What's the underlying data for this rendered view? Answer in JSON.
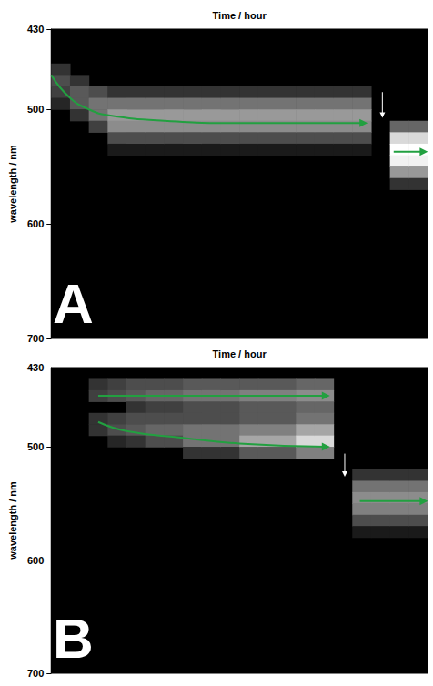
{
  "chart_data": [
    {
      "type": "heatmap",
      "panel": "A",
      "title": "Time / hour",
      "ylabel": "wavelength / nm",
      "xlim": [
        0,
        20
      ],
      "ylim": [
        430,
        700
      ],
      "yticks": [
        430,
        500,
        600,
        700
      ],
      "tick_labels": "y",
      "grid": false,
      "cell_size": [
        1,
        10
      ],
      "zlim": [
        0,
        1
      ],
      "cells": [
        [
          0,
          460,
          0.2
        ],
        [
          0,
          470,
          0.3
        ],
        [
          0,
          480,
          0.25
        ],
        [
          0,
          490,
          0.15
        ],
        [
          1,
          470,
          0.2
        ],
        [
          1,
          480,
          0.35
        ],
        [
          1,
          490,
          0.35
        ],
        [
          1,
          500,
          0.2
        ],
        [
          2,
          480,
          0.3
        ],
        [
          2,
          490,
          0.45
        ],
        [
          2,
          500,
          0.45
        ],
        [
          2,
          510,
          0.25
        ],
        [
          3,
          480,
          0.2
        ],
        [
          3,
          490,
          0.45
        ],
        [
          3,
          500,
          0.6
        ],
        [
          3,
          510,
          0.55
        ],
        [
          3,
          520,
          0.3
        ],
        [
          3,
          530,
          0.1
        ],
        [
          4,
          480,
          0.2
        ],
        [
          4,
          490,
          0.45
        ],
        [
          4,
          500,
          0.6
        ],
        [
          4,
          510,
          0.55
        ],
        [
          4,
          520,
          0.3
        ],
        [
          4,
          530,
          0.1
        ],
        [
          5,
          480,
          0.2
        ],
        [
          5,
          490,
          0.45
        ],
        [
          5,
          500,
          0.6
        ],
        [
          5,
          510,
          0.55
        ],
        [
          5,
          520,
          0.3
        ],
        [
          5,
          530,
          0.1
        ],
        [
          6,
          480,
          0.2
        ],
        [
          6,
          490,
          0.45
        ],
        [
          6,
          500,
          0.6
        ],
        [
          6,
          510,
          0.55
        ],
        [
          6,
          520,
          0.3
        ],
        [
          6,
          530,
          0.1
        ],
        [
          7,
          480,
          0.2
        ],
        [
          7,
          490,
          0.45
        ],
        [
          7,
          500,
          0.6
        ],
        [
          7,
          510,
          0.55
        ],
        [
          7,
          520,
          0.3
        ],
        [
          7,
          530,
          0.1
        ],
        [
          8,
          480,
          0.2
        ],
        [
          8,
          490,
          0.45
        ],
        [
          8,
          500,
          0.6
        ],
        [
          8,
          510,
          0.55
        ],
        [
          8,
          520,
          0.3
        ],
        [
          8,
          530,
          0.1
        ],
        [
          9,
          480,
          0.2
        ],
        [
          9,
          490,
          0.45
        ],
        [
          9,
          500,
          0.6
        ],
        [
          9,
          510,
          0.55
        ],
        [
          9,
          520,
          0.3
        ],
        [
          9,
          530,
          0.1
        ],
        [
          10,
          480,
          0.2
        ],
        [
          10,
          490,
          0.45
        ],
        [
          10,
          500,
          0.6
        ],
        [
          10,
          510,
          0.55
        ],
        [
          10,
          520,
          0.3
        ],
        [
          10,
          530,
          0.1
        ],
        [
          11,
          480,
          0.2
        ],
        [
          11,
          490,
          0.45
        ],
        [
          11,
          500,
          0.6
        ],
        [
          11,
          510,
          0.55
        ],
        [
          11,
          520,
          0.3
        ],
        [
          11,
          530,
          0.1
        ],
        [
          12,
          480,
          0.2
        ],
        [
          12,
          490,
          0.45
        ],
        [
          12,
          500,
          0.6
        ],
        [
          12,
          510,
          0.55
        ],
        [
          12,
          520,
          0.3
        ],
        [
          12,
          530,
          0.1
        ],
        [
          13,
          480,
          0.2
        ],
        [
          13,
          490,
          0.45
        ],
        [
          13,
          500,
          0.6
        ],
        [
          13,
          510,
          0.55
        ],
        [
          13,
          520,
          0.3
        ],
        [
          13,
          530,
          0.1
        ],
        [
          14,
          480,
          0.2
        ],
        [
          14,
          490,
          0.45
        ],
        [
          14,
          500,
          0.6
        ],
        [
          14,
          510,
          0.55
        ],
        [
          14,
          520,
          0.3
        ],
        [
          14,
          530,
          0.1
        ],
        [
          15,
          480,
          0.2
        ],
        [
          15,
          490,
          0.45
        ],
        [
          15,
          500,
          0.6
        ],
        [
          15,
          510,
          0.55
        ],
        [
          15,
          520,
          0.3
        ],
        [
          15,
          530,
          0.1
        ],
        [
          16,
          480,
          0.2
        ],
        [
          16,
          490,
          0.45
        ],
        [
          16,
          500,
          0.6
        ],
        [
          16,
          510,
          0.55
        ],
        [
          16,
          520,
          0.3
        ],
        [
          16,
          530,
          0.1
        ],
        [
          18,
          510,
          0.4
        ],
        [
          18,
          520,
          0.85
        ],
        [
          18,
          530,
          1
        ],
        [
          18,
          540,
          0.95
        ],
        [
          18,
          550,
          0.6
        ],
        [
          18,
          560,
          0.2
        ],
        [
          19,
          510,
          0.4
        ],
        [
          19,
          520,
          0.85
        ],
        [
          19,
          530,
          1
        ],
        [
          19,
          540,
          0.95
        ],
        [
          19,
          550,
          0.6
        ],
        [
          19,
          560,
          0.2
        ]
      ],
      "series": [
        {
          "color": "#22a040",
          "x": [
            0,
            1,
            2,
            3,
            6,
            10,
            16.6
          ],
          "values": [
            470,
            490,
            500,
            505,
            510,
            512,
            512
          ]
        },
        {
          "color": "#22a040",
          "x": [
            18.2,
            19.8
          ],
          "values": [
            537,
            537
          ]
        }
      ],
      "event_arrow": {
        "color": "#ffffff",
        "x": 17.6,
        "from": 485,
        "to": 505
      }
    },
    {
      "type": "heatmap",
      "panel": "B",
      "title": "Time / hour",
      "ylabel": "wavelength / nm",
      "xlim": [
        0,
        20
      ],
      "ylim": [
        430,
        700
      ],
      "yticks": [
        430,
        500,
        600,
        700
      ],
      "tick_labels": "y",
      "grid": false,
      "cell_size": [
        1,
        10
      ],
      "zlim": [
        0,
        1
      ],
      "cells": [
        [
          2,
          440,
          0.2
        ],
        [
          2,
          450,
          0.25
        ],
        [
          2,
          470,
          0.2
        ],
        [
          2,
          480,
          0.2
        ],
        [
          3,
          440,
          0.25
        ],
        [
          3,
          450,
          0.3
        ],
        [
          3,
          470,
          0.25
        ],
        [
          3,
          480,
          0.3
        ],
        [
          3,
          490,
          0.15
        ],
        [
          4,
          440,
          0.3
        ],
        [
          4,
          450,
          0.35
        ],
        [
          4,
          460,
          0.2
        ],
        [
          4,
          470,
          0.3
        ],
        [
          4,
          480,
          0.35
        ],
        [
          4,
          490,
          0.2
        ],
        [
          5,
          440,
          0.3
        ],
        [
          5,
          450,
          0.4
        ],
        [
          5,
          460,
          0.25
        ],
        [
          5,
          470,
          0.3
        ],
        [
          5,
          480,
          0.4
        ],
        [
          5,
          490,
          0.3
        ],
        [
          6,
          440,
          0.3
        ],
        [
          6,
          450,
          0.4
        ],
        [
          6,
          460,
          0.25
        ],
        [
          6,
          470,
          0.3
        ],
        [
          6,
          480,
          0.4
        ],
        [
          6,
          490,
          0.3
        ],
        [
          7,
          440,
          0.35
        ],
        [
          7,
          450,
          0.45
        ],
        [
          7,
          460,
          0.3
        ],
        [
          7,
          470,
          0.3
        ],
        [
          7,
          480,
          0.45
        ],
        [
          7,
          490,
          0.45
        ],
        [
          7,
          500,
          0.2
        ],
        [
          8,
          440,
          0.35
        ],
        [
          8,
          450,
          0.45
        ],
        [
          8,
          460,
          0.3
        ],
        [
          8,
          470,
          0.3
        ],
        [
          8,
          480,
          0.45
        ],
        [
          8,
          490,
          0.45
        ],
        [
          8,
          500,
          0.2
        ],
        [
          9,
          440,
          0.35
        ],
        [
          9,
          450,
          0.45
        ],
        [
          9,
          460,
          0.3
        ],
        [
          9,
          470,
          0.3
        ],
        [
          9,
          480,
          0.45
        ],
        [
          9,
          490,
          0.45
        ],
        [
          9,
          500,
          0.2
        ],
        [
          10,
          440,
          0.35
        ],
        [
          10,
          450,
          0.5
        ],
        [
          10,
          460,
          0.35
        ],
        [
          10,
          470,
          0.35
        ],
        [
          10,
          480,
          0.5
        ],
        [
          10,
          490,
          0.65
        ],
        [
          10,
          500,
          0.35
        ],
        [
          11,
          440,
          0.35
        ],
        [
          11,
          450,
          0.5
        ],
        [
          11,
          460,
          0.35
        ],
        [
          11,
          470,
          0.35
        ],
        [
          11,
          480,
          0.5
        ],
        [
          11,
          490,
          0.65
        ],
        [
          11,
          500,
          0.35
        ],
        [
          12,
          440,
          0.35
        ],
        [
          12,
          450,
          0.5
        ],
        [
          12,
          460,
          0.35
        ],
        [
          12,
          470,
          0.35
        ],
        [
          12,
          480,
          0.5
        ],
        [
          12,
          490,
          0.65
        ],
        [
          12,
          500,
          0.35
        ],
        [
          13,
          440,
          0.4
        ],
        [
          13,
          450,
          0.55
        ],
        [
          13,
          460,
          0.4
        ],
        [
          13,
          470,
          0.45
        ],
        [
          13,
          480,
          0.65
        ],
        [
          13,
          490,
          0.85
        ],
        [
          13,
          500,
          0.5
        ],
        [
          14,
          440,
          0.4
        ],
        [
          14,
          450,
          0.55
        ],
        [
          14,
          460,
          0.4
        ],
        [
          14,
          470,
          0.45
        ],
        [
          14,
          480,
          0.65
        ],
        [
          14,
          490,
          0.85
        ],
        [
          14,
          500,
          0.5
        ],
        [
          16,
          520,
          0.2
        ],
        [
          16,
          530,
          0.45
        ],
        [
          16,
          540,
          0.55
        ],
        [
          16,
          550,
          0.5
        ],
        [
          16,
          560,
          0.3
        ],
        [
          16,
          570,
          0.1
        ],
        [
          17,
          520,
          0.2
        ],
        [
          17,
          530,
          0.45
        ],
        [
          17,
          540,
          0.55
        ],
        [
          17,
          550,
          0.5
        ],
        [
          17,
          560,
          0.3
        ],
        [
          17,
          570,
          0.1
        ],
        [
          18,
          520,
          0.2
        ],
        [
          18,
          530,
          0.45
        ],
        [
          18,
          540,
          0.55
        ],
        [
          18,
          550,
          0.5
        ],
        [
          18,
          560,
          0.3
        ],
        [
          18,
          570,
          0.1
        ],
        [
          19,
          520,
          0.2
        ],
        [
          19,
          530,
          0.45
        ],
        [
          19,
          540,
          0.55
        ],
        [
          19,
          550,
          0.5
        ],
        [
          19,
          560,
          0.3
        ],
        [
          19,
          570,
          0.1
        ]
      ],
      "series": [
        {
          "color": "#22a040",
          "x": [
            2.5,
            14.6
          ],
          "values": [
            455,
            455
          ]
        },
        {
          "color": "#22a040",
          "x": [
            2.5,
            4,
            7,
            10,
            14.6
          ],
          "values": [
            478,
            486,
            492,
            497,
            500
          ]
        },
        {
          "color": "#22a040",
          "x": [
            16.4,
            19.8
          ],
          "values": [
            548,
            548
          ]
        }
      ],
      "event_arrow": {
        "color": "#ffffff",
        "x": 15.6,
        "from": 506,
        "to": 524
      }
    }
  ]
}
